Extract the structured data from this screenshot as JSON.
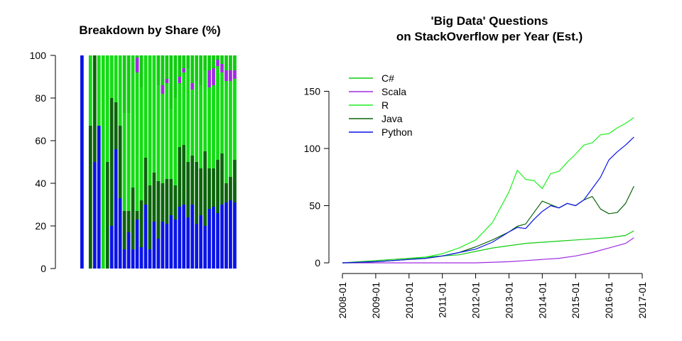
{
  "chart_data": [
    {
      "type": "bar",
      "stacked": true,
      "title": "Breakdown by Share (%)",
      "ylim": [
        0,
        100
      ],
      "yticks": [
        0,
        20,
        40,
        60,
        80,
        100
      ],
      "stack_order": [
        "Python",
        "Java",
        "R",
        "Scala",
        "C#"
      ],
      "colors": {
        "Python": "#0a14e6",
        "Java": "#0b640b",
        "R": "#14dc14",
        "Scala": "#a02ce0",
        "C#": "#10cc10"
      },
      "bars": [
        {
          "Python": 100,
          "Java": 0,
          "R": 0,
          "Scala": 0,
          "C#": 0
        },
        null,
        {
          "Python": 0,
          "Java": 67,
          "R": 33,
          "Scala": 0,
          "C#": 0
        },
        {
          "Python": 50,
          "Java": 50,
          "R": 0,
          "Scala": 0,
          "C#": 0
        },
        {
          "Python": 67,
          "Java": 0,
          "R": 33,
          "Scala": 0,
          "C#": 0
        },
        {
          "Python": 0,
          "Java": 0,
          "R": 100,
          "Scala": 0,
          "C#": 0
        },
        {
          "Python": 0,
          "Java": 50,
          "R": 50,
          "Scala": 0,
          "C#": 0
        },
        {
          "Python": 20,
          "Java": 60,
          "R": 20,
          "Scala": 0,
          "C#": 0
        },
        {
          "Python": 56,
          "Java": 22,
          "R": 22,
          "Scala": 0,
          "C#": 0
        },
        {
          "Python": 33,
          "Java": 34,
          "R": 33,
          "Scala": 0,
          "C#": 0
        },
        {
          "Python": 9,
          "Java": 18,
          "R": 46,
          "Scala": 0,
          "C#": 27
        },
        {
          "Python": 17,
          "Java": 10,
          "R": 46,
          "Scala": 0,
          "C#": 27
        },
        {
          "Python": 9,
          "Java": 29,
          "R": 62,
          "Scala": 0,
          "C#": 0
        },
        {
          "Python": 23,
          "Java": 4,
          "R": 65,
          "Scala": 7,
          "C#": 1
        },
        {
          "Python": 10,
          "Java": 22,
          "R": 53,
          "Scala": 0,
          "C#": 15
        },
        {
          "Python": 30,
          "Java": 22,
          "R": 48,
          "Scala": 0,
          "C#": 0
        },
        {
          "Python": 9,
          "Java": 30,
          "R": 61,
          "Scala": 0,
          "C#": 0
        },
        {
          "Python": 22,
          "Java": 23,
          "R": 55,
          "Scala": 0,
          "C#": 0
        },
        {
          "Python": 14,
          "Java": 27,
          "R": 45,
          "Scala": 0,
          "C#": 14
        },
        {
          "Python": 22,
          "Java": 18,
          "R": 42,
          "Scala": 4,
          "C#": 14
        },
        {
          "Python": 21,
          "Java": 21,
          "R": 45,
          "Scala": 2,
          "C#": 11
        },
        {
          "Python": 25,
          "Java": 17,
          "R": 33,
          "Scala": 0,
          "C#": 25
        },
        {
          "Python": 23,
          "Java": 16,
          "R": 41,
          "Scala": 0,
          "C#": 20
        },
        {
          "Python": 29,
          "Java": 28,
          "R": 30,
          "Scala": 3,
          "C#": 10
        },
        {
          "Python": 30,
          "Java": 28,
          "R": 34,
          "Scala": 2,
          "C#": 6
        },
        {
          "Python": 24,
          "Java": 26,
          "R": 44,
          "Scala": 0,
          "C#": 6
        },
        {
          "Python": 30,
          "Java": 23,
          "R": 31,
          "Scala": 3,
          "C#": 13
        },
        {
          "Python": 21,
          "Java": 29,
          "R": 38,
          "Scala": 0,
          "C#": 12
        },
        {
          "Python": 25,
          "Java": 22,
          "R": 39,
          "Scala": 0,
          "C#": 14
        },
        {
          "Python": 20,
          "Java": 35,
          "R": 38,
          "Scala": 0,
          "C#": 7
        },
        {
          "Python": 28,
          "Java": 19,
          "R": 38,
          "Scala": 8,
          "C#": 7
        },
        {
          "Python": 29,
          "Java": 18,
          "R": 39,
          "Scala": 8,
          "C#": 6
        },
        {
          "Python": 26,
          "Java": 25,
          "R": 44,
          "Scala": 3,
          "C#": 2
        },
        {
          "Python": 30,
          "Java": 24,
          "R": 38,
          "Scala": 4,
          "C#": 4
        },
        {
          "Python": 31,
          "Java": 9,
          "R": 48,
          "Scala": 5,
          "C#": 7
        },
        {
          "Python": 32,
          "Java": 11,
          "R": 45,
          "Scala": 5,
          "C#": 7
        },
        {
          "Python": 31,
          "Java": 20,
          "R": 38,
          "Scala": 4,
          "C#": 7
        }
      ]
    },
    {
      "type": "line",
      "title": "'Big Data' Questions\non StackOverflow per Year (Est.)",
      "ylim": [
        0,
        170
      ],
      "yticks": [
        0,
        50,
        100,
        150
      ],
      "xlim": [
        "2008-01",
        "2017-01"
      ],
      "xticks": [
        "2008-01",
        "2009-01",
        "2010-01",
        "2011-01",
        "2012-01",
        "2013-01",
        "2014-01",
        "2015-01",
        "2016-01",
        "2017-01"
      ],
      "legend_position": "top-left",
      "series": [
        {
          "name": "C#",
          "color": "#10cc10",
          "x": [
            "2008-01",
            "2008-07",
            "2009-01",
            "2009-07",
            "2010-01",
            "2010-07",
            "2011-01",
            "2011-07",
            "2012-01",
            "2012-07",
            "2013-01",
            "2013-07",
            "2014-01",
            "2014-07",
            "2015-01",
            "2015-07",
            "2016-01",
            "2016-04",
            "2016-07",
            "2016-10"
          ],
          "y": [
            0,
            1,
            2,
            3,
            4,
            5,
            6,
            7,
            10,
            13,
            15,
            17,
            18,
            19,
            20,
            21,
            22,
            23,
            24,
            28
          ]
        },
        {
          "name": "Scala",
          "color": "#a02ce0",
          "x": [
            "2008-01",
            "2009-01",
            "2010-01",
            "2011-01",
            "2012-01",
            "2013-01",
            "2013-07",
            "2014-01",
            "2014-07",
            "2015-01",
            "2015-07",
            "2016-01",
            "2016-07",
            "2016-10"
          ],
          "y": [
            0,
            0,
            0,
            0,
            0,
            1,
            2,
            3,
            4,
            6,
            9,
            13,
            17,
            22
          ]
        },
        {
          "name": "R",
          "color": "#1ef01e",
          "x": [
            "2008-01",
            "2009-01",
            "2009-07",
            "2010-01",
            "2010-07",
            "2011-01",
            "2011-07",
            "2012-01",
            "2012-07",
            "2013-01",
            "2013-04",
            "2013-07",
            "2013-10",
            "2014-01",
            "2014-04",
            "2014-07",
            "2014-10",
            "2015-01",
            "2015-04",
            "2015-07",
            "2015-10",
            "2016-01",
            "2016-04",
            "2016-07",
            "2016-10"
          ],
          "y": [
            0,
            1,
            2,
            3,
            5,
            8,
            13,
            20,
            35,
            62,
            81,
            73,
            72,
            65,
            78,
            80,
            88,
            95,
            103,
            105,
            112,
            113,
            118,
            122,
            127
          ]
        },
        {
          "name": "Java",
          "color": "#0b640b",
          "x": [
            "2008-01",
            "2009-01",
            "2009-07",
            "2010-01",
            "2010-07",
            "2011-01",
            "2011-07",
            "2012-01",
            "2012-07",
            "2013-01",
            "2013-04",
            "2013-07",
            "2013-10",
            "2014-01",
            "2014-04",
            "2014-07",
            "2014-10",
            "2015-01",
            "2015-04",
            "2015-07",
            "2015-10",
            "2016-01",
            "2016-04",
            "2016-07",
            "2016-10"
          ],
          "y": [
            0,
            1,
            2,
            3,
            4,
            6,
            9,
            14,
            20,
            27,
            32,
            34,
            44,
            54,
            51,
            48,
            52,
            50,
            55,
            58,
            47,
            43,
            44,
            52,
            67
          ]
        },
        {
          "name": "Python",
          "color": "#0a14e6",
          "x": [
            "2008-01",
            "2009-01",
            "2009-07",
            "2010-01",
            "2010-07",
            "2011-01",
            "2011-07",
            "2012-01",
            "2012-07",
            "2013-01",
            "2013-04",
            "2013-07",
            "2013-10",
            "2014-01",
            "2014-04",
            "2014-07",
            "2014-10",
            "2015-01",
            "2015-04",
            "2015-07",
            "2015-10",
            "2016-01",
            "2016-04",
            "2016-07",
            "2016-10"
          ],
          "y": [
            0,
            1,
            2,
            3,
            4,
            6,
            9,
            12,
            18,
            27,
            31,
            30,
            38,
            45,
            50,
            48,
            52,
            50,
            55,
            65,
            75,
            90,
            97,
            103,
            110
          ]
        }
      ]
    }
  ]
}
